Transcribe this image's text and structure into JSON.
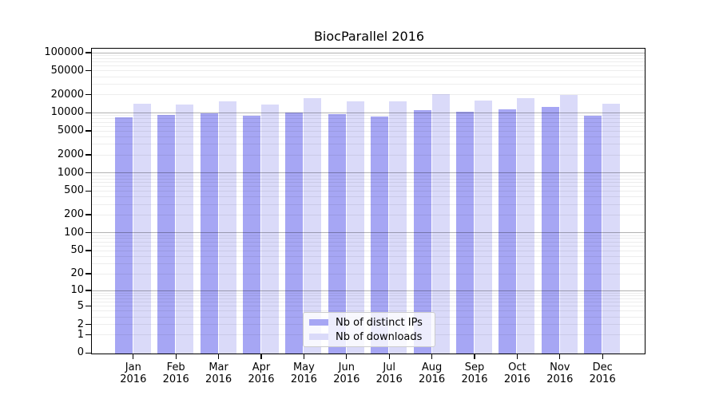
{
  "chart_data": {
    "type": "bar",
    "title": "BiocParallel 2016",
    "categories": [
      "Jan",
      "Feb",
      "Mar",
      "Apr",
      "May",
      "Jun",
      "Jul",
      "Aug",
      "Sep",
      "Oct",
      "Nov",
      "Dec"
    ],
    "x_year": "2016",
    "series": [
      {
        "name": "Nb of distinct IPs",
        "color": "#a6a6f4",
        "values": [
          8700,
          9400,
          10000,
          9100,
          10300,
          9700,
          8900,
          11200,
          10600,
          11600,
          12700,
          9000
        ]
      },
      {
        "name": "Nb of downloads",
        "color": "#dadaf9",
        "values": [
          14300,
          14000,
          15800,
          14200,
          18100,
          15900,
          16000,
          20600,
          16300,
          18100,
          20300,
          14300
        ]
      }
    ],
    "y_ticks": [
      0,
      1,
      2,
      5,
      10,
      20,
      50,
      100,
      200,
      500,
      1000,
      2000,
      5000,
      10000,
      20000,
      50000,
      100000
    ],
    "y_scale": "log1p",
    "ylim": [
      0,
      122000
    ],
    "grid": true,
    "legend_position": "lower center",
    "xlabel": "",
    "ylabel": ""
  }
}
